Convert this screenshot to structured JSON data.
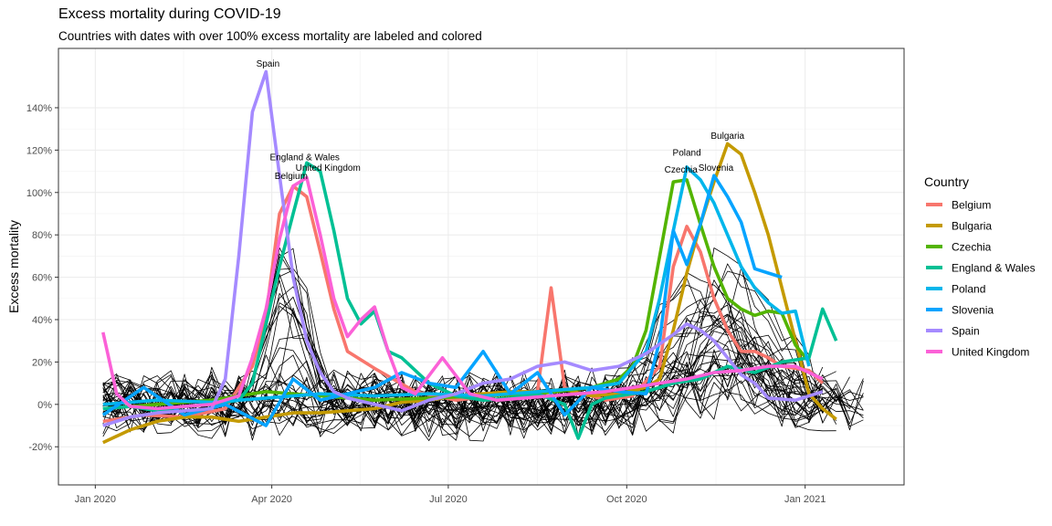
{
  "chart_data": {
    "type": "line",
    "title": "Excess mortality during COVID-19",
    "subtitle": "Countries with dates with over 100% excess mortality are labeled and colored",
    "xlabel": "",
    "ylabel": "Excess mortality",
    "x_ticks": [
      "Jan 2020",
      "Apr 2020",
      "Jul 2020",
      "Oct 2020",
      "Jan 2021"
    ],
    "x_tick_dates": [
      "2020-01-01",
      "2020-04-01",
      "2020-07-01",
      "2020-10-01",
      "2021-01-01"
    ],
    "x_range": [
      "2019-12-13",
      "2021-02-21"
    ],
    "y_ticks": [
      -0.2,
      0,
      0.2,
      0.4,
      0.6,
      0.8,
      1.0,
      1.2,
      1.4
    ],
    "y_tick_labels": [
      "-20%",
      "0%",
      "20%",
      "40%",
      "60%",
      "80%",
      "100%",
      "120%",
      "140%"
    ],
    "ylim": [
      -0.38,
      1.68
    ],
    "grid": true,
    "legend_title": "Country",
    "legend_position": "right",
    "highlighted_series": [
      {
        "name": "Belgium",
        "color": "#F8766D",
        "x": [
          "2020-01-05",
          "2020-01-26",
          "2020-02-16",
          "2020-03-08",
          "2020-03-22",
          "2020-03-29",
          "2020-04-05",
          "2020-04-12",
          "2020-04-19",
          "2020-04-26",
          "2020-05-03",
          "2020-05-10",
          "2020-05-24",
          "2020-06-14",
          "2020-07-05",
          "2020-08-02",
          "2020-08-16",
          "2020-08-23",
          "2020-08-30",
          "2020-09-06",
          "2020-09-13",
          "2020-09-20",
          "2020-10-04",
          "2020-10-18",
          "2020-10-25",
          "2020-11-01",
          "2020-11-08",
          "2020-11-15",
          "2020-11-22",
          "2020-11-29",
          "2020-12-06",
          "2020-12-13",
          "2020-12-20",
          "2021-01-03",
          "2021-01-10"
        ],
        "y": [
          -0.08,
          -0.05,
          -0.06,
          -0.02,
          0.18,
          0.42,
          0.9,
          1.03,
          0.98,
          0.72,
          0.45,
          0.25,
          0.17,
          0.06,
          0.02,
          0.05,
          0.06,
          0.55,
          0.08,
          0.05,
          0.04,
          0.02,
          0.04,
          0.18,
          0.65,
          0.84,
          0.72,
          0.5,
          0.35,
          0.25,
          0.25,
          0.22,
          0.18,
          0.16,
          0.1
        ]
      },
      {
        "name": "Bulgaria",
        "color": "#C49A00",
        "x": [
          "2020-01-05",
          "2020-01-19",
          "2020-02-02",
          "2020-02-16",
          "2020-03-01",
          "2020-03-15",
          "2020-03-29",
          "2020-04-12",
          "2020-04-26",
          "2020-05-10",
          "2020-05-24",
          "2020-06-07",
          "2020-06-21",
          "2020-07-05",
          "2020-07-19",
          "2020-08-02",
          "2020-08-16",
          "2020-08-30",
          "2020-09-13",
          "2020-09-27",
          "2020-10-11",
          "2020-10-18",
          "2020-10-25",
          "2020-11-01",
          "2020-11-08",
          "2020-11-15",
          "2020-11-22",
          "2020-11-29",
          "2020-12-06",
          "2020-12-13",
          "2020-12-20",
          "2020-12-27",
          "2021-01-03",
          "2021-01-10",
          "2021-01-17"
        ],
        "y": [
          -0.18,
          -0.12,
          -0.08,
          -0.06,
          -0.06,
          -0.08,
          -0.06,
          -0.04,
          -0.04,
          -0.03,
          -0.02,
          0.01,
          0.02,
          0.04,
          0.05,
          0.06,
          0.06,
          0.07,
          0.04,
          0.05,
          0.08,
          0.12,
          0.35,
          0.62,
          0.85,
          1.05,
          1.23,
          1.18,
          1.0,
          0.8,
          0.55,
          0.3,
          0.05,
          -0.02,
          -0.07
        ]
      },
      {
        "name": "Czechia",
        "color": "#53B400",
        "x": [
          "2020-01-05",
          "2020-02-02",
          "2020-03-01",
          "2020-03-29",
          "2020-04-26",
          "2020-05-24",
          "2020-06-21",
          "2020-07-19",
          "2020-08-16",
          "2020-09-13",
          "2020-09-27",
          "2020-10-04",
          "2020-10-11",
          "2020-10-18",
          "2020-10-25",
          "2020-11-01",
          "2020-11-08",
          "2020-11-15",
          "2020-11-22",
          "2020-11-29",
          "2020-12-06",
          "2020-12-13",
          "2020-12-20",
          "2020-12-27",
          "2021-01-03"
        ],
        "y": [
          -0.02,
          0.0,
          0.02,
          0.06,
          0.04,
          0.02,
          0.03,
          0.04,
          0.05,
          0.08,
          0.12,
          0.18,
          0.35,
          0.7,
          1.05,
          1.06,
          0.85,
          0.65,
          0.5,
          0.45,
          0.42,
          0.44,
          0.43,
          0.28,
          0.2
        ]
      },
      {
        "name": "England & Wales",
        "color": "#00C094",
        "x": [
          "2020-01-05",
          "2020-01-19",
          "2020-02-02",
          "2020-02-16",
          "2020-03-01",
          "2020-03-15",
          "2020-03-22",
          "2020-03-29",
          "2020-04-05",
          "2020-04-12",
          "2020-04-19",
          "2020-04-26",
          "2020-05-03",
          "2020-05-10",
          "2020-05-17",
          "2020-05-24",
          "2020-05-31",
          "2020-06-07",
          "2020-06-21",
          "2020-07-05",
          "2020-07-19",
          "2020-08-02",
          "2020-08-16",
          "2020-08-30",
          "2020-09-06",
          "2020-09-13",
          "2020-09-20",
          "2020-09-27",
          "2020-10-11",
          "2020-10-25",
          "2020-11-08",
          "2020-11-22",
          "2020-12-06",
          "2020-12-20",
          "2021-01-03",
          "2021-01-10",
          "2021-01-17"
        ],
        "y": [
          -0.02,
          -0.01,
          -0.03,
          -0.01,
          0.0,
          0.02,
          0.1,
          0.38,
          0.65,
          0.9,
          1.14,
          1.1,
          0.82,
          0.5,
          0.38,
          0.44,
          0.25,
          0.22,
          0.1,
          0.04,
          0.02,
          0.03,
          0.05,
          0.0,
          -0.16,
          0.0,
          0.03,
          0.04,
          0.06,
          0.1,
          0.12,
          0.18,
          0.15,
          0.2,
          0.22,
          0.45,
          0.3
        ]
      },
      {
        "name": "Poland",
        "color": "#00B6EB",
        "x": [
          "2020-01-05",
          "2020-02-02",
          "2020-03-01",
          "2020-03-29",
          "2020-04-26",
          "2020-05-24",
          "2020-06-21",
          "2020-07-19",
          "2020-08-16",
          "2020-09-13",
          "2020-09-27",
          "2020-10-11",
          "2020-10-18",
          "2020-10-25",
          "2020-11-01",
          "2020-11-08",
          "2020-11-15",
          "2020-11-22",
          "2020-11-29",
          "2020-12-06",
          "2020-12-13",
          "2020-12-20",
          "2020-12-27",
          "2021-01-03"
        ],
        "y": [
          0.0,
          0.02,
          0.01,
          0.03,
          0.05,
          0.04,
          0.05,
          0.04,
          0.06,
          0.08,
          0.1,
          0.25,
          0.5,
          0.82,
          1.12,
          1.06,
          0.95,
          0.8,
          0.65,
          0.55,
          0.48,
          0.43,
          0.44,
          0.18
        ]
      },
      {
        "name": "Slovenia",
        "color": "#06A4FF",
        "x": [
          "2020-01-05",
          "2020-01-26",
          "2020-02-16",
          "2020-03-08",
          "2020-03-29",
          "2020-04-12",
          "2020-04-26",
          "2020-05-10",
          "2020-05-24",
          "2020-06-07",
          "2020-06-21",
          "2020-07-05",
          "2020-07-19",
          "2020-08-02",
          "2020-08-16",
          "2020-08-30",
          "2020-09-13",
          "2020-09-27",
          "2020-10-11",
          "2020-10-18",
          "2020-10-25",
          "2020-11-01",
          "2020-11-08",
          "2020-11-15",
          "2020-11-22",
          "2020-11-29",
          "2020-12-06",
          "2020-12-13",
          "2020-12-20"
        ],
        "y": [
          -0.05,
          0.08,
          -0.05,
          0.0,
          -0.1,
          0.12,
          0.02,
          0.05,
          0.08,
          0.15,
          0.1,
          0.08,
          0.25,
          0.05,
          0.15,
          -0.05,
          0.08,
          0.06,
          0.05,
          0.3,
          0.82,
          0.66,
          0.85,
          1.08,
          0.98,
          0.86,
          0.64,
          0.62,
          0.6
        ]
      },
      {
        "name": "Spain",
        "color": "#A58AFF",
        "x": [
          "2020-01-05",
          "2020-01-19",
          "2020-02-02",
          "2020-02-16",
          "2020-03-01",
          "2020-03-08",
          "2020-03-15",
          "2020-03-22",
          "2020-03-29",
          "2020-04-05",
          "2020-04-12",
          "2020-04-19",
          "2020-04-26",
          "2020-05-03",
          "2020-05-10",
          "2020-05-24",
          "2020-06-07",
          "2020-06-21",
          "2020-07-05",
          "2020-07-19",
          "2020-08-02",
          "2020-08-16",
          "2020-08-30",
          "2020-09-13",
          "2020-09-27",
          "2020-10-11",
          "2020-10-25",
          "2020-11-01",
          "2020-11-08",
          "2020-11-15",
          "2020-11-22",
          "2020-11-29",
          "2020-12-06",
          "2020-12-13",
          "2020-12-27",
          "2021-01-10"
        ],
        "y": [
          -0.1,
          -0.06,
          -0.04,
          -0.03,
          -0.02,
          0.12,
          0.7,
          1.38,
          1.57,
          1.08,
          0.6,
          0.3,
          0.15,
          0.06,
          0.03,
          0.0,
          -0.03,
          0.02,
          0.05,
          0.1,
          0.12,
          0.18,
          0.2,
          0.16,
          0.18,
          0.24,
          0.33,
          0.38,
          0.35,
          0.3,
          0.22,
          0.14,
          0.1,
          0.03,
          0.02,
          0.06
        ]
      },
      {
        "name": "United Kingdom",
        "color": "#FB61D7",
        "x": [
          "2020-01-05",
          "2020-01-12",
          "2020-01-19",
          "2020-02-02",
          "2020-02-16",
          "2020-03-01",
          "2020-03-15",
          "2020-03-22",
          "2020-03-29",
          "2020-04-05",
          "2020-04-12",
          "2020-04-19",
          "2020-04-26",
          "2020-05-03",
          "2020-05-10",
          "2020-05-17",
          "2020-05-24",
          "2020-05-31",
          "2020-06-07",
          "2020-06-14",
          "2020-06-28",
          "2020-07-12",
          "2020-07-26",
          "2020-08-09",
          "2020-08-23",
          "2020-09-06",
          "2020-09-20",
          "2020-10-04",
          "2020-10-18",
          "2020-11-01",
          "2020-11-15",
          "2020-11-29",
          "2020-12-13",
          "2020-12-27",
          "2021-01-10"
        ],
        "y": [
          0.34,
          0.05,
          -0.01,
          -0.02,
          -0.01,
          0.0,
          0.04,
          0.22,
          0.45,
          0.78,
          1.03,
          1.07,
          0.8,
          0.5,
          0.32,
          0.4,
          0.46,
          0.25,
          0.08,
          0.05,
          0.22,
          0.05,
          0.02,
          0.03,
          0.04,
          0.05,
          0.06,
          0.08,
          0.1,
          0.12,
          0.15,
          0.16,
          0.18,
          0.18,
          0.12
        ]
      }
    ],
    "other_series_count": 35,
    "other_series_color": "#000000",
    "peak_labels": [
      {
        "text": "Spain",
        "x": "2020-03-30",
        "y": 1.58
      },
      {
        "text": "England & Wales",
        "x": "2020-04-18",
        "y": 1.14
      },
      {
        "text": "United Kingdom",
        "x": "2020-04-30",
        "y": 1.09
      },
      {
        "text": "Belgium",
        "x": "2020-04-11",
        "y": 1.05
      },
      {
        "text": "Poland",
        "x": "2020-11-01",
        "y": 1.16
      },
      {
        "text": "Czechia",
        "x": "2020-10-29",
        "y": 1.08
      },
      {
        "text": "Bulgaria",
        "x": "2020-11-22",
        "y": 1.24
      },
      {
        "text": "Slovenia",
        "x": "2020-11-16",
        "y": 1.09
      }
    ]
  }
}
